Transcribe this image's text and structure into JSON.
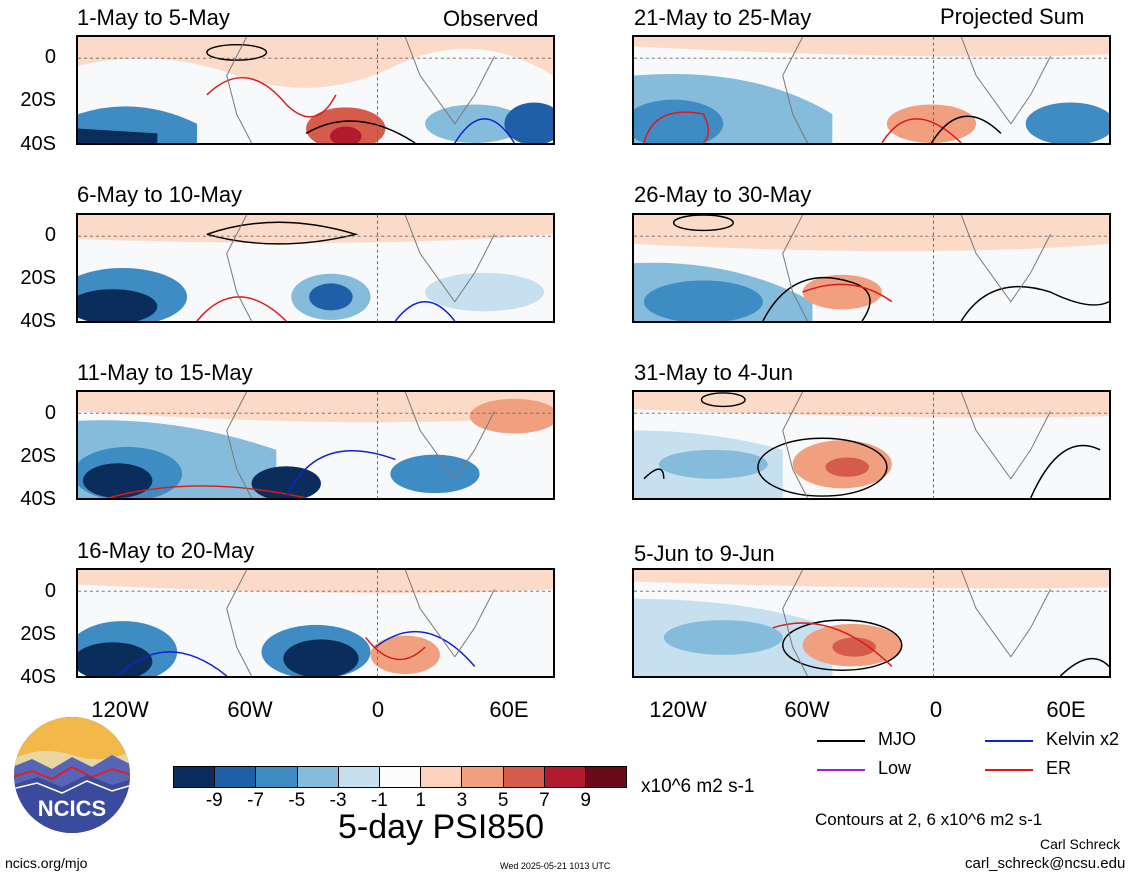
{
  "panels": {
    "left_header": "Observed",
    "right_header": "Projected Sum",
    "left": [
      {
        "title": "1-May to 5-May"
      },
      {
        "title": "6-May to 10-May"
      },
      {
        "title": "11-May to 15-May"
      },
      {
        "title": "16-May to 20-May"
      }
    ],
    "right": [
      {
        "title": "21-May to 25-May"
      },
      {
        "title": "26-May to 30-May"
      },
      {
        "title": "31-May to 4-Jun"
      },
      {
        "title": "5-Jun to 9-Jun"
      }
    ],
    "lat_labels": [
      "0",
      "20S",
      "40S"
    ],
    "lon_labels": [
      "120W",
      "60W",
      "0",
      "60E"
    ]
  },
  "colorbar": {
    "labels": [
      "-9",
      "-7",
      "-5",
      "-3",
      "-1",
      "1",
      "3",
      "5",
      "7",
      "9"
    ],
    "colors": [
      "#0b2d5c",
      "#1f5ea8",
      "#3f8cc5",
      "#85bcdb",
      "#c6e0ef",
      "#fbfbfb",
      "#fbd2bc",
      "#f0a07f",
      "#d55c4c",
      "#b01c2e",
      "#6b0a1a"
    ],
    "units": "x10^6 m2 s-1",
    "title": "5-day PSI850"
  },
  "legend": {
    "items": [
      {
        "label": "MJO",
        "color": "#000000"
      },
      {
        "label": "Kelvin x2",
        "color": "#1122cc"
      },
      {
        "label": "Low",
        "color": "#a020e0"
      },
      {
        "label": "ER",
        "color": "#e01818"
      }
    ],
    "contours_note": "Contours at 2, 6 x10^6 m2 s-1"
  },
  "footer": {
    "site": "ncics.org/mjo",
    "timestamp": "Wed 2025-05-21 1013 UTC",
    "author": "Carl Schreck",
    "email": "carl_schreck@ncsu.edu"
  },
  "logo": {
    "text": "NCICS"
  }
}
